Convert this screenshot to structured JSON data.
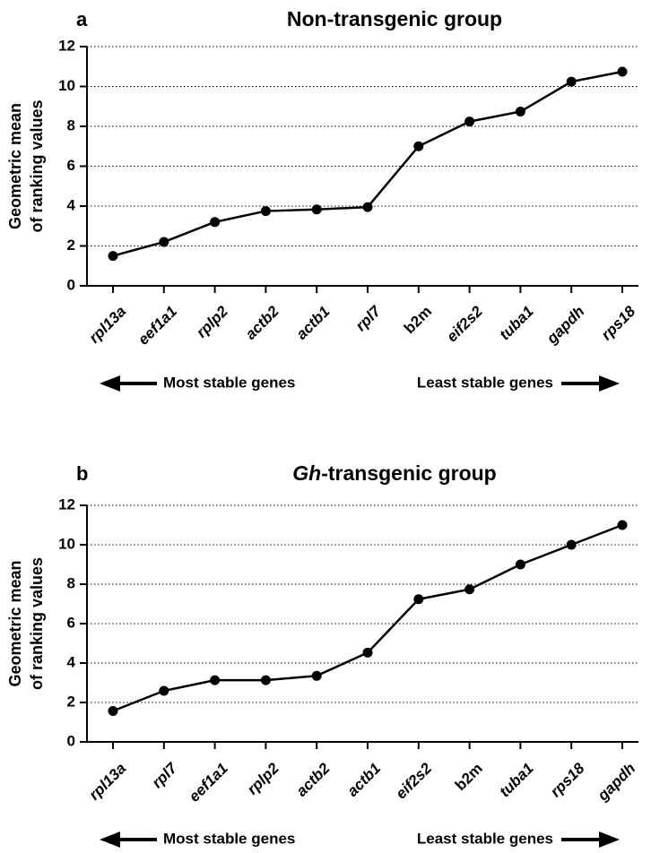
{
  "chart_data": [
    {
      "type": "line",
      "panel_letter": "a",
      "title": "Non-transgenic group",
      "title_prefix_italic": "",
      "ylabel": [
        "Geometric mean",
        "of ranking values"
      ],
      "ylim": [
        0,
        12
      ],
      "yticks": [
        0,
        2,
        4,
        6,
        8,
        10,
        12
      ],
      "grid": "horizontal dotted",
      "categories": [
        "rpl13a",
        "eef1a1",
        "rplp2",
        "actb2",
        "actb1",
        "rpl7",
        "b2m",
        "eif2s2",
        "tuba1",
        "gapdh",
        "rps18"
      ],
      "upright_categories": [
        "b2m"
      ],
      "values": [
        1.5,
        2.2,
        3.2,
        3.75,
        3.83,
        3.95,
        7.0,
        8.24,
        8.74,
        10.24,
        10.74
      ],
      "annotations": {
        "left": "Most stable genes",
        "right": "Least stable genes"
      }
    },
    {
      "type": "line",
      "panel_letter": "b",
      "title": "-transgenic group",
      "title_prefix_italic": "Gh",
      "ylabel": [
        "Geometric mean",
        "of ranking values"
      ],
      "ylim": [
        0,
        12
      ],
      "yticks": [
        0,
        2,
        4,
        6,
        8,
        10,
        12
      ],
      "grid": "horizontal dotted",
      "categories": [
        "rpl13a",
        "rpl7",
        "eef1a1",
        "rplp2",
        "actb2",
        "actb1",
        "eif2s2",
        "b2m",
        "tuba1",
        "rps18",
        "gapdh"
      ],
      "upright_categories": [
        "b2m"
      ],
      "values": [
        1.57,
        2.59,
        3.13,
        3.13,
        3.35,
        4.53,
        7.24,
        7.74,
        9.0,
        10.0,
        11.0
      ],
      "annotations": {
        "left": "Most stable genes",
        "right": "Least stable genes"
      }
    }
  ]
}
